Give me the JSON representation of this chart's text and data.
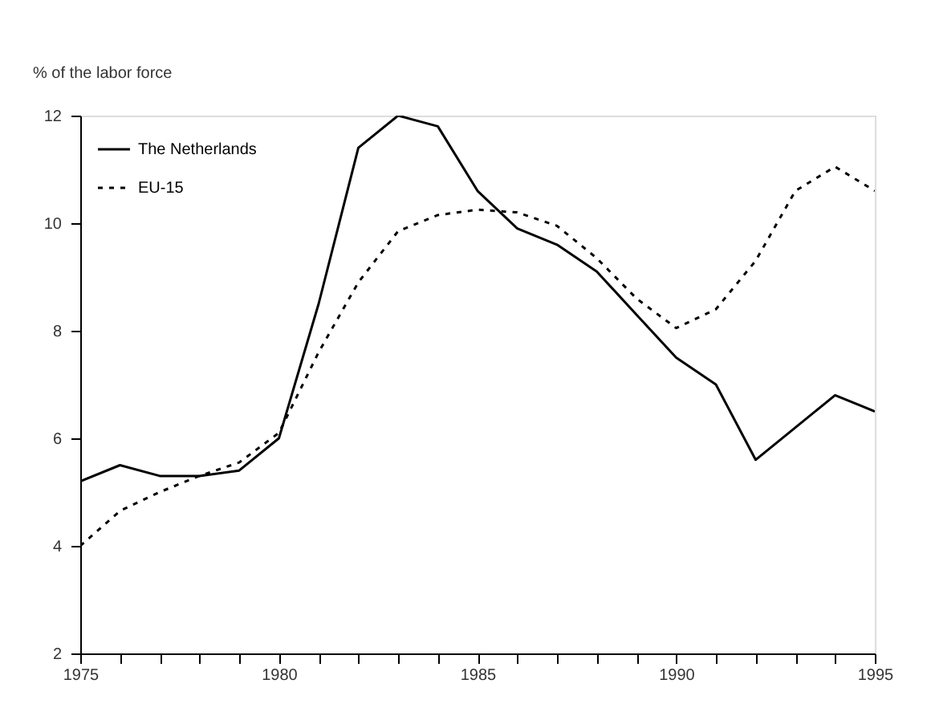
{
  "chart_data": {
    "type": "line",
    "ylabel": "% of the labor force",
    "x": [
      1975,
      1976,
      1977,
      1978,
      1979,
      1980,
      1981,
      1982,
      1983,
      1984,
      1985,
      1986,
      1987,
      1988,
      1989,
      1990,
      1991,
      1992,
      1993,
      1994,
      1995
    ],
    "series": [
      {
        "name": "The Netherlands",
        "color": "#000000",
        "line_style": "solid",
        "values": [
          5.2,
          5.5,
          5.3,
          5.3,
          5.4,
          6.0,
          8.5,
          11.4,
          12.0,
          11.8,
          10.6,
          9.9,
          9.6,
          9.1,
          8.3,
          7.5,
          7.0,
          5.6,
          6.2,
          6.8,
          6.5
        ]
      },
      {
        "name": "EU-15",
        "color": "#000000",
        "line_style": "dotted",
        "values": [
          4.0,
          4.65,
          5.0,
          5.3,
          5.55,
          6.1,
          7.6,
          8.9,
          9.85,
          10.15,
          10.25,
          10.2,
          9.95,
          9.35,
          8.6,
          8.05,
          8.4,
          9.3,
          10.6,
          11.05,
          10.6
        ]
      }
    ],
    "xlim": [
      1975,
      1995
    ],
    "xticks": [
      1975,
      {
        "value": 1976,
        "label": null
      },
      {
        "value": 1977,
        "label": null
      },
      {
        "value": 1978,
        "label": null
      },
      {
        "value": 1979,
        "label": null
      },
      1980,
      {
        "value": 1981,
        "label": null
      },
      {
        "value": 1982,
        "label": null
      },
      {
        "value": 1983,
        "label": null
      },
      {
        "value": 1984,
        "label": null
      },
      1985,
      {
        "value": 1986,
        "label": null
      },
      {
        "value": 1987,
        "label": null
      },
      {
        "value": 1988,
        "label": null
      },
      {
        "value": 1989,
        "label": null
      },
      1990,
      {
        "value": 1991,
        "label": null
      },
      {
        "value": 1992,
        "label": null
      },
      {
        "value": 1993,
        "label": null
      },
      {
        "value": 1994,
        "label": null
      },
      1995
    ],
    "ylim": [
      2,
      12
    ],
    "yticks": [
      2,
      4,
      6,
      8,
      10,
      12
    ],
    "grid": false,
    "legend": "top left",
    "marker": "none"
  }
}
